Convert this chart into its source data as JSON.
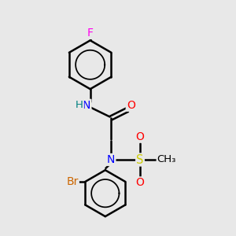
{
  "background_color": "#e8e8e8",
  "atom_colors": {
    "F": "#ff00ee",
    "N": "#0000ff",
    "O": "#ff0000",
    "S": "#cccc00",
    "Br": "#cc6600",
    "C": "#000000",
    "H": "#008080"
  },
  "bond_color": "#000000",
  "bond_width": 1.8
}
